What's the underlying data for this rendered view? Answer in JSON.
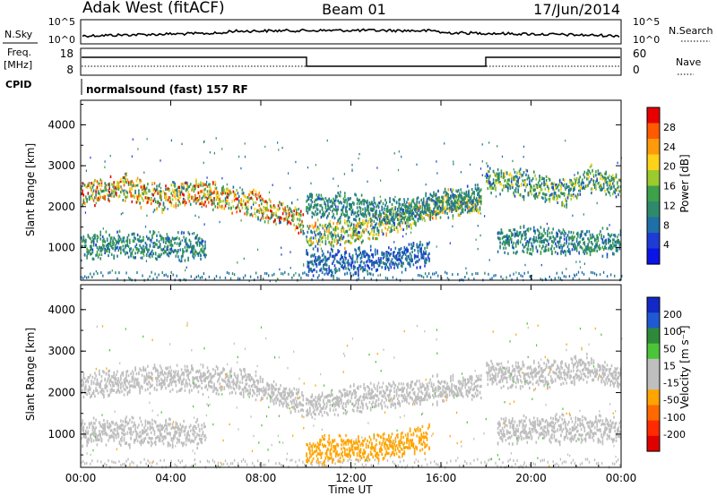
{
  "header": {
    "station": "Adak West (fitACF)",
    "beam": "Beam 01",
    "date": "17/Jun/2014"
  },
  "aux": {
    "nsky_label": "N.Sky",
    "nsky_ticks": [
      "10^5",
      "10^0"
    ],
    "nsearch_label": "N.Search",
    "nsearch_ticks": [
      "10^5",
      "10^0"
    ],
    "freq_label": "Freq.",
    "freq_unit": "[MHz]",
    "freq_ticks": [
      "18",
      "8"
    ],
    "nave_label": "Nave",
    "nave_ticks": [
      "60",
      "0"
    ],
    "cpid_label": "CPID",
    "cpid_text": "normalsound (fast) 157 RF"
  },
  "colors": {
    "power_scale": [
      "#0a14e6",
      "#1f3bd6",
      "#1f6fa8",
      "#2e8a6a",
      "#3fa04a",
      "#9ccb2e",
      "#ffd21a",
      "#ff9a0a",
      "#ff5a00",
      "#e80000"
    ],
    "velocity_scale": [
      "#1428c8",
      "#1f5ad2",
      "#2e8a3a",
      "#4cc43a",
      "#bfbfbf",
      "#bfbfbf",
      "#ffa500",
      "#ff6a00",
      "#ff2a00",
      "#e00000"
    ],
    "velocity_gray": "#bfbfbf"
  },
  "chart_data": [
    {
      "type": "heatmap",
      "name": "power-panel",
      "ylabel": "Slant Range [km]",
      "yticks": [
        "1000",
        "2000",
        "3000",
        "4000"
      ],
      "ylim": [
        200,
        4600
      ],
      "colorbar_label": "Power [dB]",
      "colorbar_ticks": [
        "4",
        "8",
        "12",
        "16",
        "20",
        "24",
        "28"
      ],
      "colorbar_range": [
        0,
        30
      ],
      "bands": [
        {
          "t0": 0.0,
          "t1": 9.9,
          "ranges": [
            [
              0.0,
              2350
            ],
            [
              2.0,
              2500
            ],
            [
              3.5,
              2200
            ],
            [
              5.0,
              2400
            ],
            [
              7.0,
              2150
            ],
            [
              8.5,
              1950
            ],
            [
              9.9,
              1650
            ]
          ],
          "power": [
            10,
            14,
            18,
            22,
            28
          ]
        },
        {
          "t0": 0.0,
          "t1": 5.5,
          "ranges": [
            [
              0.0,
              1100
            ],
            [
              5.5,
              1050
            ]
          ],
          "power": [
            8,
            10,
            12
          ]
        },
        {
          "t0": 10.0,
          "t1": 17.8,
          "ranges": [
            [
              10.0,
              1350
            ],
            [
              12.0,
              1380
            ],
            [
              14.0,
              1700
            ],
            [
              16.0,
              2100
            ],
            [
              17.8,
              2100
            ]
          ],
          "power": [
            8,
            14,
            18,
            22
          ]
        },
        {
          "t0": 10.0,
          "t1": 17.8,
          "ranges": [
            [
              10.0,
              2100
            ],
            [
              14.0,
              1900
            ],
            [
              17.8,
              2300
            ]
          ],
          "power": [
            8,
            10,
            12
          ]
        },
        {
          "t0": 10.0,
          "t1": 15.5,
          "ranges": [
            [
              10.0,
              650
            ],
            [
              13.0,
              700
            ],
            [
              15.5,
              950
            ]
          ],
          "power": [
            6,
            8
          ]
        },
        {
          "t0": 18.0,
          "t1": 24.0,
          "ranges": [
            [
              18.0,
              2700
            ],
            [
              20.0,
              2550
            ],
            [
              21.5,
              2350
            ],
            [
              22.5,
              2750
            ],
            [
              24.0,
              2500
            ]
          ],
          "power": [
            8,
            12,
            18
          ]
        },
        {
          "t0": 18.5,
          "t1": 24.0,
          "ranges": [
            [
              18.5,
              1200
            ],
            [
              24.0,
              1150
            ]
          ],
          "power": [
            8,
            10,
            12
          ]
        }
      ]
    },
    {
      "type": "heatmap",
      "name": "velocity-panel",
      "ylabel": "Slant Range [km]",
      "yticks": [
        "1000",
        "2000",
        "3000",
        "4000"
      ],
      "ylim": [
        200,
        4600
      ],
      "colorbar_label": "Velocity [m s⁻¹]",
      "colorbar_ticks": [
        "200",
        "100",
        "50",
        "15",
        "-15",
        "-50",
        "-100",
        "-200"
      ],
      "colorbar_range": [
        -250,
        250
      ],
      "bands": [
        {
          "t0": 0.0,
          "t1": 9.9,
          "ranges": [
            [
              0.0,
              2200
            ],
            [
              4.0,
              2400
            ],
            [
              7.0,
              2300
            ],
            [
              9.9,
              1800
            ]
          ],
          "velocity": [
            0
          ]
        },
        {
          "t0": 0.0,
          "t1": 5.5,
          "ranges": [
            [
              0.0,
              1100
            ],
            [
              5.5,
              1050
            ]
          ],
          "velocity": [
            0
          ]
        },
        {
          "t0": 10.0,
          "t1": 17.8,
          "ranges": [
            [
              10.0,
              1700
            ],
            [
              14.0,
              2000
            ],
            [
              17.8,
              2200
            ]
          ],
          "velocity": [
            0,
            30
          ]
        },
        {
          "t0": 10.0,
          "t1": 15.5,
          "ranges": [
            [
              10.0,
              620
            ],
            [
              13.0,
              700
            ],
            [
              15.5,
              930
            ]
          ],
          "velocity": [
            -60
          ]
        },
        {
          "t0": 18.0,
          "t1": 24.0,
          "ranges": [
            [
              18.0,
              2500
            ],
            [
              20.0,
              2450
            ],
            [
              22.5,
              2600
            ],
            [
              24.0,
              2400
            ]
          ],
          "velocity": [
            0,
            40
          ]
        },
        {
          "t0": 18.5,
          "t1": 24.0,
          "ranges": [
            [
              18.5,
              1150
            ],
            [
              24.0,
              1150
            ]
          ],
          "velocity": [
            0
          ]
        }
      ]
    }
  ],
  "xaxis": {
    "label": "Time UT",
    "ticks": [
      "00:00",
      "04:00",
      "08:00",
      "12:00",
      "16:00",
      "20:00",
      "00:00"
    ]
  }
}
